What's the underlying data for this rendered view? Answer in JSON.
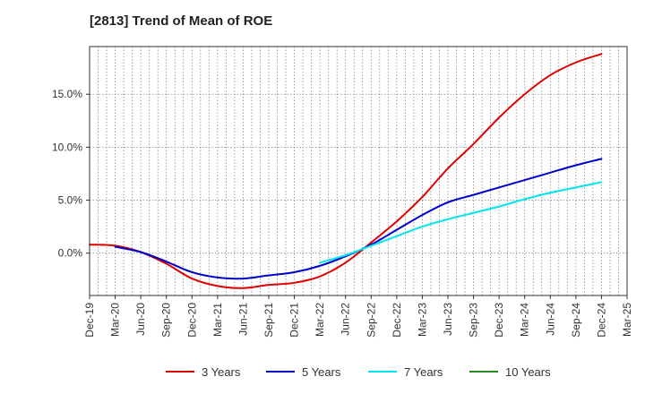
{
  "chart_data": {
    "type": "line",
    "title": "[2813]  Trend of Mean of ROE",
    "xlabel": "",
    "ylabel": "",
    "x_ticks": [
      "Dec-19",
      "Mar-20",
      "Jun-20",
      "Sep-20",
      "Dec-20",
      "Mar-21",
      "Jun-21",
      "Sep-21",
      "Dec-21",
      "Mar-22",
      "Jun-22",
      "Sep-22",
      "Dec-22",
      "Mar-23",
      "Jun-23",
      "Sep-23",
      "Dec-23",
      "Mar-24",
      "Jun-24",
      "Sep-24",
      "Dec-24",
      "Mar-25"
    ],
    "y_ticks": [
      0,
      5,
      10,
      15
    ],
    "y_tick_labels": [
      "0.0%",
      "5.0%",
      "10.0%",
      "15.0%"
    ],
    "ylim": [
      -4,
      19.5
    ],
    "grid": "vertical dotted, horizontal dotted",
    "legend_position": "bottom",
    "series": [
      {
        "name": "3 Years",
        "color": "#dd0000",
        "x": [
          "Dec-19",
          "Mar-20",
          "Jun-20",
          "Sep-20",
          "Dec-20",
          "Mar-21",
          "Jun-21",
          "Sep-21",
          "Dec-21",
          "Mar-22",
          "Jun-22",
          "Sep-22",
          "Dec-22",
          "Mar-23",
          "Jun-23",
          "Sep-23",
          "Dec-23",
          "Mar-24",
          "Jun-24",
          "Sep-24",
          "Dec-24"
        ],
        "values": [
          0.8,
          0.7,
          0.1,
          -1.0,
          -2.4,
          -3.1,
          -3.3,
          -3.0,
          -2.8,
          -2.2,
          -0.9,
          1.0,
          3.0,
          5.3,
          8.0,
          10.3,
          12.8,
          15.0,
          16.8,
          18.0,
          18.8
        ]
      },
      {
        "name": "5 Years",
        "color": "#0000cc",
        "x": [
          "Mar-20",
          "Jun-20",
          "Sep-20",
          "Dec-20",
          "Mar-21",
          "Jun-21",
          "Sep-21",
          "Dec-21",
          "Mar-22",
          "Jun-22",
          "Sep-22",
          "Dec-22",
          "Mar-23",
          "Jun-23",
          "Sep-23",
          "Dec-23",
          "Mar-24",
          "Jun-24",
          "Sep-24",
          "Dec-24"
        ],
        "values": [
          0.6,
          0.1,
          -0.8,
          -1.8,
          -2.3,
          -2.4,
          -2.1,
          -1.8,
          -1.2,
          -0.3,
          0.8,
          2.2,
          3.6,
          4.8,
          5.5,
          6.2,
          6.9,
          7.6,
          8.3,
          8.9
        ]
      },
      {
        "name": "7 Years",
        "color": "#00e5ee",
        "x": [
          "Mar-22",
          "Jun-22",
          "Sep-22",
          "Dec-22",
          "Mar-23",
          "Jun-23",
          "Sep-23",
          "Dec-23",
          "Mar-24",
          "Jun-24",
          "Sep-24",
          "Dec-24"
        ],
        "values": [
          -0.9,
          -0.2,
          0.7,
          1.6,
          2.5,
          3.2,
          3.8,
          4.4,
          5.1,
          5.7,
          6.2,
          6.7
        ]
      },
      {
        "name": "10 Years",
        "color": "#228b22",
        "x": [],
        "values": []
      }
    ]
  }
}
